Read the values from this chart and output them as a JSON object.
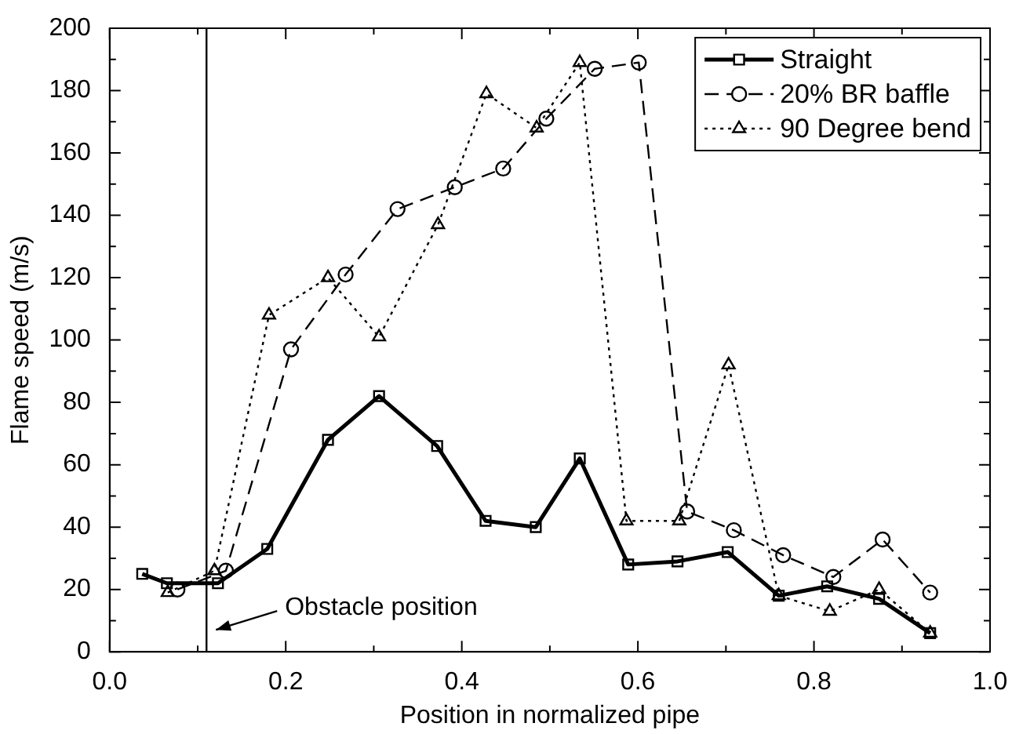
{
  "chart_data": {
    "type": "line",
    "xlabel": "Position in normalized pipe",
    "ylabel": "Flame speed (m/s)",
    "xlim": [
      0,
      1
    ],
    "ylim": [
      0,
      200
    ],
    "xticks": [
      {
        "value": 0,
        "label": "0.0"
      },
      {
        "value": 0.1,
        "label": null
      },
      {
        "value": 0.2,
        "label": "0.2"
      },
      {
        "value": 0.3,
        "label": null
      },
      {
        "value": 0.4,
        "label": "0.4"
      },
      {
        "value": 0.5,
        "label": null
      },
      {
        "value": 0.6,
        "label": "0.6"
      },
      {
        "value": 0.7,
        "label": null
      },
      {
        "value": 0.8,
        "label": "0.8"
      },
      {
        "value": 0.9,
        "label": null
      },
      {
        "value": 1,
        "label": "1.0"
      }
    ],
    "yticks": [
      0,
      {
        "value": 10,
        "label": null
      },
      20,
      {
        "value": 30,
        "label": null
      },
      40,
      {
        "value": 50,
        "label": null
      },
      60,
      {
        "value": 70,
        "label": null
      },
      80,
      {
        "value": 90,
        "label": null
      },
      100,
      {
        "value": 110,
        "label": null
      },
      120,
      {
        "value": 130,
        "label": null
      },
      140,
      {
        "value": 150,
        "label": null
      },
      160,
      {
        "value": 170,
        "label": null
      },
      180,
      {
        "value": 190,
        "label": null
      },
      200
    ],
    "grid": false,
    "legend": "top right",
    "series": [
      {
        "name": "Straight",
        "color": "#000000",
        "marker": "square",
        "line_style": "solid",
        "x": [
          0.037,
          0.065,
          0.123,
          0.179,
          0.248,
          0.306,
          0.372,
          0.427,
          0.484,
          0.534,
          0.589,
          0.645,
          0.702,
          0.76,
          0.815,
          0.874,
          0.932
        ],
        "values": [
          25,
          22,
          22,
          33,
          68,
          82,
          66,
          42,
          40,
          62,
          28,
          29,
          32,
          18,
          21,
          17,
          6
        ]
      },
      {
        "name": "20% BR baffle",
        "color": "#000000",
        "marker": "circle",
        "line_style": "dashed",
        "x": [
          0.077,
          0.132,
          0.206,
          0.268,
          0.327,
          0.392,
          0.447,
          0.496,
          0.551,
          0.601,
          0.656,
          0.709,
          0.765,
          0.822,
          0.878,
          0.932
        ],
        "values": [
          20,
          26,
          97,
          121,
          142,
          149,
          155,
          171,
          187,
          189,
          45,
          39,
          31,
          24,
          36,
          19
        ]
      },
      {
        "name": "90 Degree bend",
        "color": "#000000",
        "marker": "triangle",
        "line_style": "dotted",
        "x": [
          0.066,
          0.119,
          0.181,
          0.248,
          0.306,
          0.373,
          0.428,
          0.485,
          0.534,
          0.587,
          0.647,
          0.703,
          0.76,
          0.818,
          0.874,
          0.932
        ],
        "values": [
          19,
          26,
          108,
          120,
          101,
          137,
          179,
          168,
          189,
          42,
          42,
          92,
          18,
          13,
          20,
          6
        ]
      }
    ],
    "ref_lines": [
      {
        "axis": "x",
        "value": 0.11,
        "label": "Obstacle position",
        "color": "#000000"
      }
    ]
  }
}
